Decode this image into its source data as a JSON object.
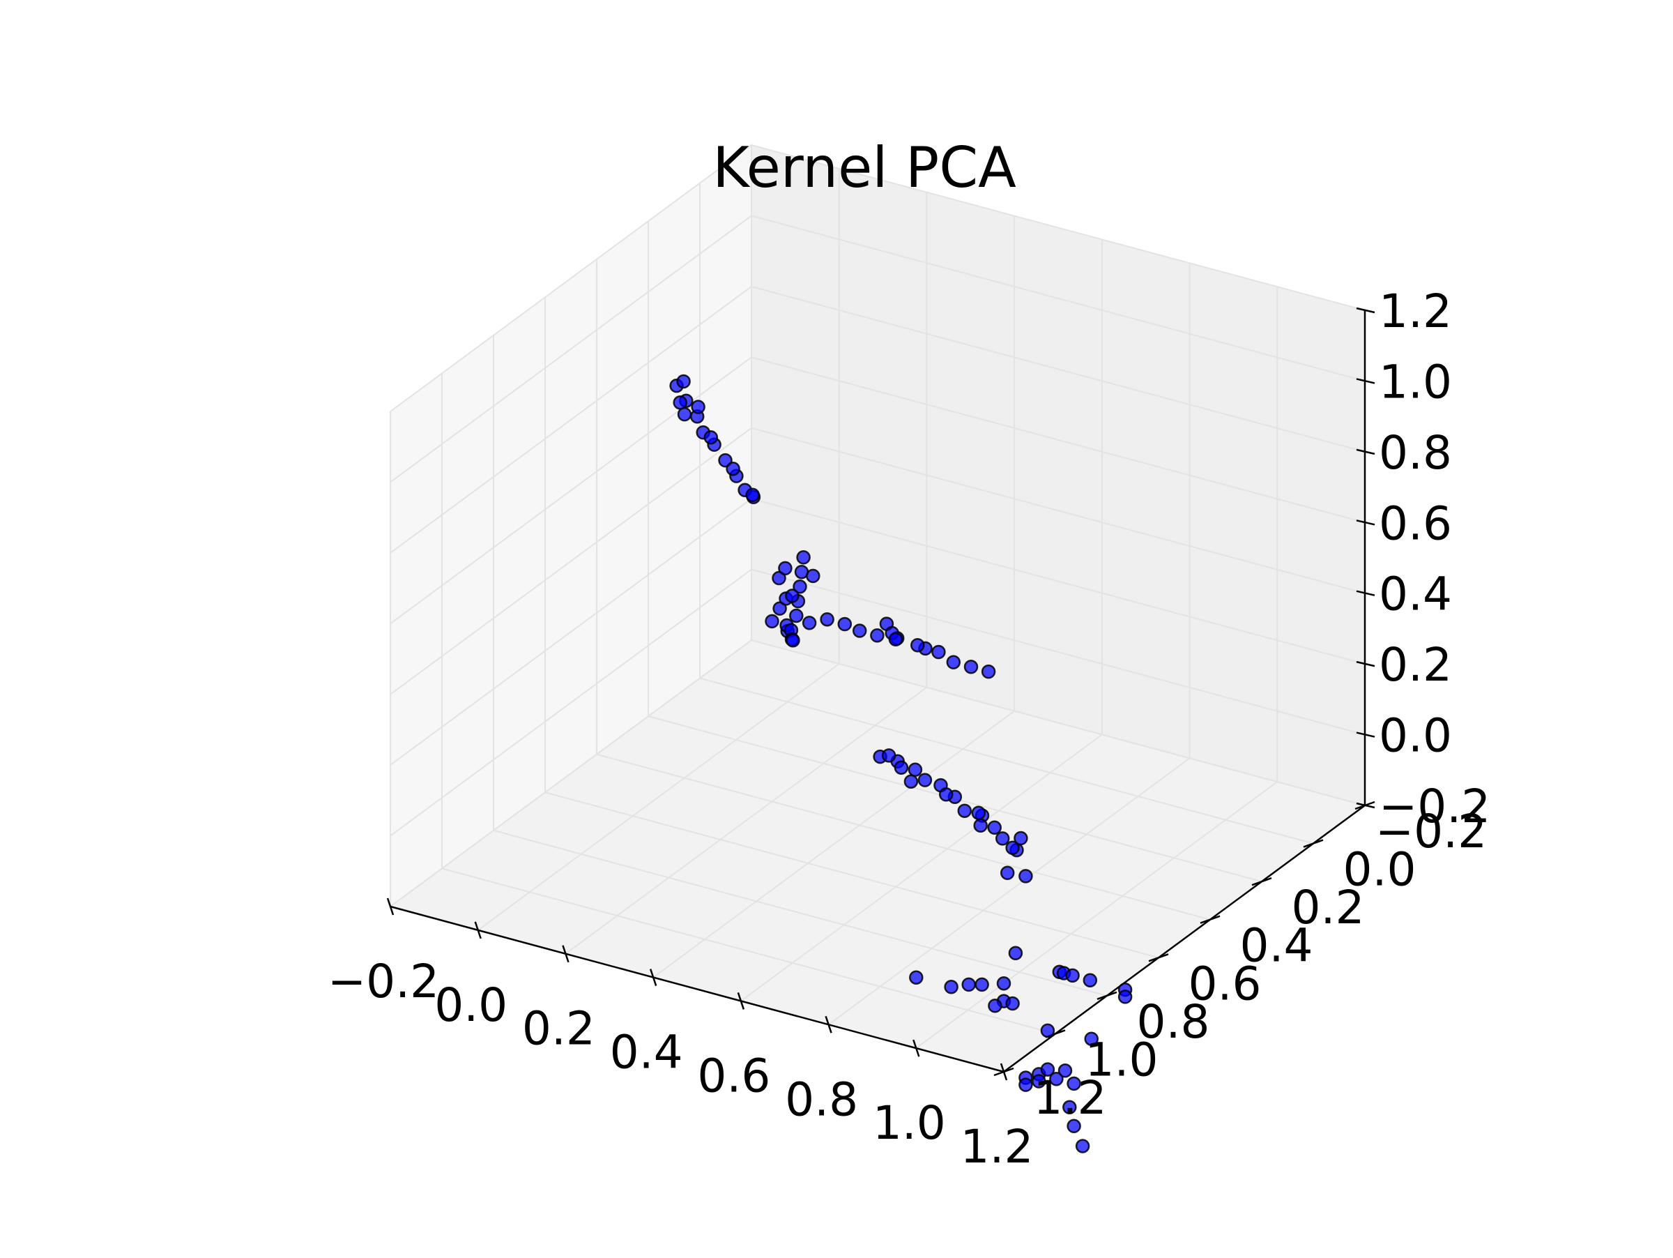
{
  "chart_data": {
    "type": "scatter3d",
    "title": "Kernel PCA",
    "xlabel": "",
    "ylabel": "",
    "zlabel": "",
    "grid": true,
    "xlim": [
      -0.2,
      1.2
    ],
    "ylim": [
      -0.2,
      1.2
    ],
    "zlim": [
      -0.2,
      1.2
    ],
    "x_ticks": [
      "−0.2",
      "0.0",
      "0.2",
      "0.4",
      "0.6",
      "0.8",
      "1.0",
      "1.2"
    ],
    "y_ticks": [
      "−0.2",
      "0.0",
      "0.2",
      "0.4",
      "0.6",
      "0.8",
      "1.0",
      "1.2"
    ],
    "z_ticks": [
      "−0.2",
      "0.0",
      "0.2",
      "0.4",
      "0.6",
      "0.8",
      "1.0",
      "1.2"
    ],
    "marker_color": "#0000ff",
    "edge_color": "#000000",
    "series": [
      {
        "points": [
          [
            0.0,
            0.0,
            0.0
          ],
          [
            0.01,
            0.02,
            0.03
          ],
          [
            0.02,
            0.0,
            0.05
          ],
          [
            0.0,
            0.03,
            0.08
          ],
          [
            0.03,
            0.01,
            0.1
          ],
          [
            0.02,
            0.04,
            0.12
          ],
          [
            0.04,
            0.02,
            0.15
          ],
          [
            0.01,
            0.05,
            0.18
          ],
          [
            0.05,
            0.03,
            0.2
          ],
          [
            0.03,
            0.06,
            0.22
          ],
          [
            0.06,
            0.04,
            0.25
          ],
          [
            0.02,
            0.02,
            0.02
          ],
          [
            0.05,
            0.0,
            0.04
          ],
          [
            0.0,
            0.06,
            0.06
          ],
          [
            0.04,
            0.05,
            0.14
          ],
          [
            0.07,
            0.02,
            0.19
          ],
          [
            0.01,
            0.0,
            -0.02
          ],
          [
            0.03,
            0.03,
            0.0
          ],
          [
            0.12,
            0.05,
            0.1
          ],
          [
            0.2,
            0.06,
            0.1
          ],
          [
            0.28,
            0.05,
            0.1
          ],
          [
            0.35,
            0.06,
            0.1
          ],
          [
            0.42,
            0.07,
            0.09
          ],
          [
            0.5,
            0.07,
            0.09
          ],
          [
            0.16,
            0.05,
            0.1
          ],
          [
            0.24,
            0.06,
            0.1
          ],
          [
            0.38,
            0.06,
            0.1
          ],
          [
            0.46,
            0.07,
            0.09
          ],
          [
            0.04,
            0.2,
            0.5
          ],
          [
            0.05,
            0.25,
            0.55
          ],
          [
            0.06,
            0.3,
            0.62
          ],
          [
            0.07,
            0.36,
            0.7
          ],
          [
            0.08,
            0.42,
            0.78
          ],
          [
            0.09,
            0.48,
            0.85
          ],
          [
            0.1,
            0.52,
            0.92
          ],
          [
            0.11,
            0.58,
            1.0
          ],
          [
            0.1,
            0.6,
            1.05
          ],
          [
            0.12,
            0.62,
            1.02
          ],
          [
            0.05,
            0.22,
            0.52
          ],
          [
            0.07,
            0.33,
            0.66
          ],
          [
            0.09,
            0.45,
            0.82
          ],
          [
            0.12,
            0.55,
            0.97
          ],
          [
            0.13,
            0.62,
            0.99
          ],
          [
            0.11,
            0.59,
            1.06
          ],
          [
            0.55,
            0.55,
            0.5
          ],
          [
            0.58,
            0.58,
            0.5
          ],
          [
            0.6,
            0.6,
            0.5
          ],
          [
            0.65,
            0.6,
            0.5
          ],
          [
            0.8,
            1.0,
            0.45
          ],
          [
            0.84,
            1.0,
            0.45
          ],
          [
            0.88,
            1.0,
            0.44
          ],
          [
            0.9,
            1.05,
            0.44
          ],
          [
            0.95,
            1.02,
            0.43
          ],
          [
            1.0,
            1.05,
            0.43
          ],
          [
            1.04,
            1.08,
            0.42
          ],
          [
            1.08,
            1.08,
            0.42
          ],
          [
            1.12,
            1.1,
            0.41
          ],
          [
            1.18,
            1.1,
            0.4
          ],
          [
            1.2,
            1.15,
            0.4
          ],
          [
            0.82,
            1.0,
            0.46
          ],
          [
            0.86,
            1.02,
            0.45
          ],
          [
            0.92,
            1.03,
            0.44
          ],
          [
            0.98,
            1.05,
            0.43
          ],
          [
            1.06,
            1.06,
            0.41
          ],
          [
            1.1,
            1.12,
            0.42
          ],
          [
            1.15,
            1.12,
            0.4
          ],
          [
            1.22,
            1.2,
            0.44
          ],
          [
            1.25,
            1.2,
            0.37
          ],
          [
            1.22,
            1.22,
            0.38
          ],
          [
            1.0,
            1.2,
            0.0
          ],
          [
            1.08,
            1.2,
            0.0
          ],
          [
            1.12,
            1.2,
            0.02
          ],
          [
            1.15,
            1.2,
            0.03
          ],
          [
            1.2,
            1.2,
            0.0
          ],
          [
            1.22,
            1.2,
            0.0
          ],
          [
            1.18,
            1.2,
            -0.02
          ],
          [
            1.2,
            1.2,
            0.05
          ],
          [
            1.25,
            1.2,
            -0.2
          ],
          [
            1.28,
            1.2,
            -0.18
          ],
          [
            1.3,
            1.2,
            -0.16
          ],
          [
            1.32,
            1.2,
            -0.18
          ],
          [
            1.34,
            1.2,
            -0.15
          ],
          [
            1.36,
            1.2,
            -0.18
          ],
          [
            1.28,
            1.2,
            -0.2
          ],
          [
            1.35,
            1.2,
            -0.25
          ],
          [
            1.38,
            1.2,
            -0.35
          ],
          [
            1.36,
            1.2,
            -0.3
          ],
          [
            1.25,
            1.2,
            -0.22
          ],
          [
            1.3,
            1.2,
            -0.05
          ],
          [
            1.4,
            1.2,
            -0.04
          ],
          [
            0.55,
            0.05,
            -0.7
          ],
          [
            0.65,
            0.05,
            -0.72
          ],
          [
            0.66,
            0.05,
            -0.72
          ],
          [
            0.68,
            0.05,
            -0.72
          ],
          [
            0.72,
            0.05,
            -0.72
          ],
          [
            0.8,
            0.05,
            -0.72
          ],
          [
            0.8,
            0.05,
            -0.74
          ]
        ]
      }
    ]
  }
}
